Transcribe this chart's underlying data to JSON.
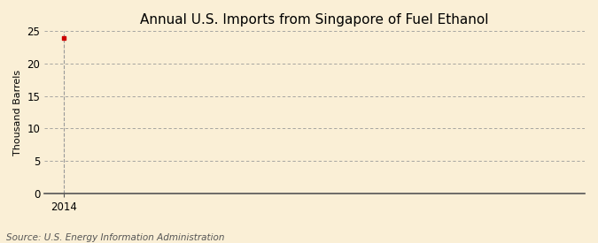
{
  "title": "Annual U.S. Imports from Singapore of Fuel Ethanol",
  "ylabel": "Thousand Barrels",
  "source_text": "Source: U.S. Energy Information Administration",
  "x_data": [
    2014
  ],
  "y_data": [
    24
  ],
  "xlim": [
    2013.7,
    2022.0
  ],
  "ylim": [
    0,
    25
  ],
  "yticks": [
    0,
    5,
    10,
    15,
    20,
    25
  ],
  "xticks": [
    2014
  ],
  "background_color": "#faefd6",
  "marker_color": "#cc0000",
  "vline_color": "#999999",
  "grid_color": "#999999",
  "title_fontsize": 11,
  "label_fontsize": 8,
  "tick_fontsize": 8.5,
  "source_fontsize": 7.5
}
